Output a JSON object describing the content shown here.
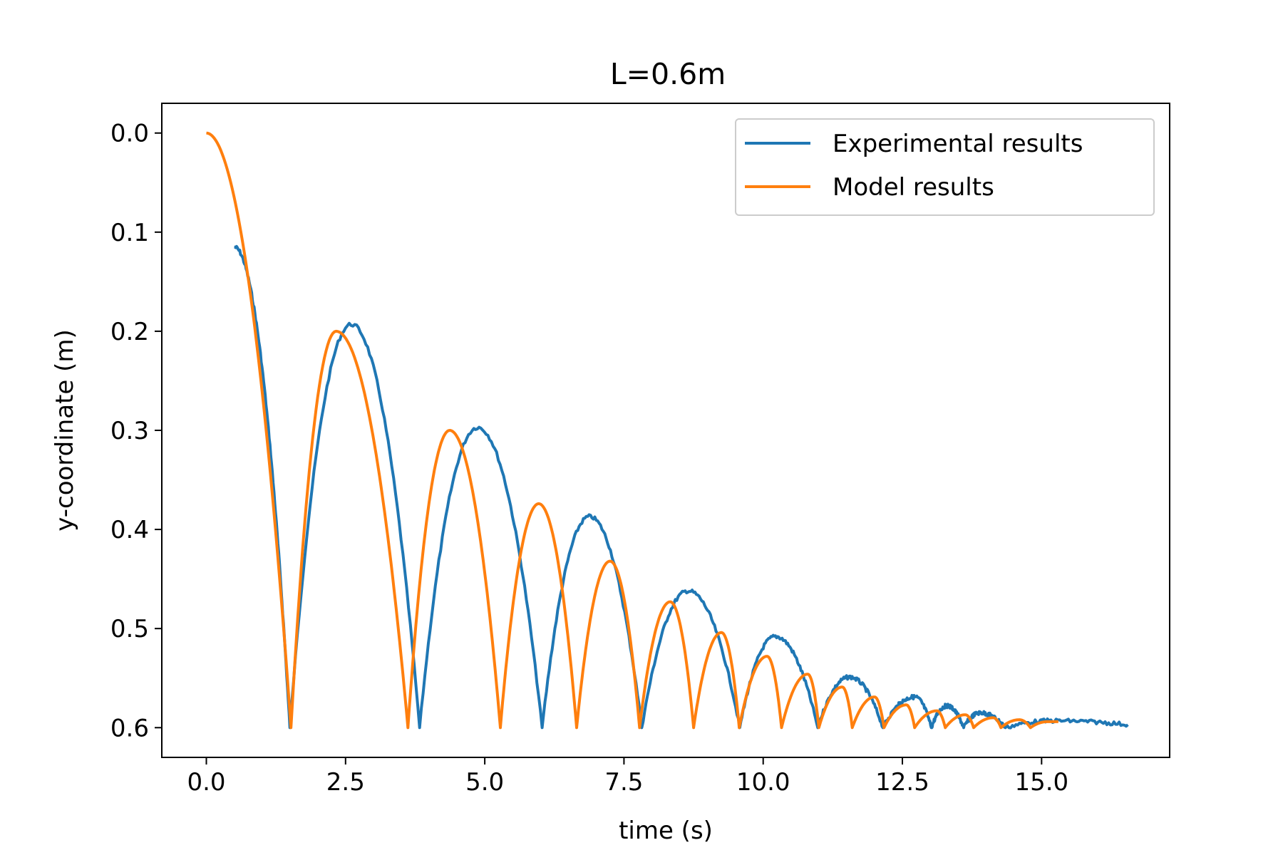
{
  "chart_data": {
    "type": "line",
    "title": "L=0.6m",
    "xlabel": "time (s)",
    "ylabel": "y-coordinate (m)",
    "xlim": [
      -0.8,
      17.3
    ],
    "ylim": [
      0.63,
      -0.03
    ],
    "y_axis_inverted": true,
    "x_ticks": [
      "0.0",
      "2.5",
      "5.0",
      "7.5",
      "10.0",
      "12.5",
      "15.0"
    ],
    "y_ticks": [
      "0.0",
      "0.1",
      "0.2",
      "0.3",
      "0.4",
      "0.5",
      "0.6"
    ],
    "grid": false,
    "legend_position": "top-right",
    "series": [
      {
        "name": "Experimental results",
        "color": "#1f77b4",
        "bounces": [
          {
            "t0": 0.5,
            "t1": 1.5,
            "y0": 0.115,
            "peak": 0.115,
            "peak_t": 0.5
          },
          {
            "t0": 1.5,
            "t1": 3.83,
            "peak": 0.193,
            "peak_t": 2.6
          },
          {
            "t0": 3.83,
            "t1": 6.03,
            "peak": 0.297,
            "peak_t": 4.87
          },
          {
            "t0": 6.03,
            "t1": 7.82,
            "peak": 0.387,
            "peak_t": 6.88
          },
          {
            "t0": 7.82,
            "t1": 9.58,
            "peak": 0.462,
            "peak_t": 8.65
          },
          {
            "t0": 9.58,
            "t1": 10.98,
            "peak": 0.508,
            "peak_t": 10.22
          },
          {
            "t0": 10.98,
            "t1": 12.15,
            "peak": 0.549,
            "peak_t": 11.55
          },
          {
            "t0": 12.15,
            "t1": 13.02,
            "peak": 0.569,
            "peak_t": 12.72
          },
          {
            "t0": 13.02,
            "t1": 13.6,
            "peak": 0.578,
            "peak_t": 13.3
          },
          {
            "t0": 13.6,
            "t1": 14.35,
            "peak": 0.585,
            "peak_t": 13.9
          },
          {
            "t0": 14.35,
            "t1": 16.55,
            "peak": 0.593,
            "peak_t": 15.2,
            "y1": 0.597
          }
        ]
      },
      {
        "name": "Model results",
        "color": "#ff7f0e",
        "bounces": [
          {
            "t0": 0.0,
            "t1": 1.52,
            "y0": 0.0,
            "peak": 0.0,
            "peak_t": 0.0
          },
          {
            "t0": 1.52,
            "t1": 3.62,
            "peak": 0.2,
            "peak_t": 2.33
          },
          {
            "t0": 3.62,
            "t1": 5.28,
            "peak": 0.3,
            "peak_t": 4.37
          },
          {
            "t0": 5.28,
            "t1": 6.65,
            "peak": 0.374,
            "peak_t": 5.97
          },
          {
            "t0": 6.65,
            "t1": 7.78,
            "peak": 0.432,
            "peak_t": 7.25
          },
          {
            "t0": 7.78,
            "t1": 8.75,
            "peak": 0.473,
            "peak_t": 8.33
          },
          {
            "t0": 8.75,
            "t1": 9.57,
            "peak": 0.504,
            "peak_t": 9.25
          },
          {
            "t0": 9.57,
            "t1": 10.33,
            "peak": 0.528,
            "peak_t": 10.07
          },
          {
            "t0": 10.33,
            "t1": 11.0,
            "peak": 0.546,
            "peak_t": 10.8
          },
          {
            "t0": 11.0,
            "t1": 11.6,
            "peak": 0.559,
            "peak_t": 11.42
          },
          {
            "t0": 11.6,
            "t1": 12.17,
            "peak": 0.569,
            "peak_t": 12.0
          },
          {
            "t0": 12.17,
            "t1": 12.72,
            "peak": 0.577,
            "peak_t": 12.57
          },
          {
            "t0": 12.72,
            "t1": 13.27,
            "peak": 0.583,
            "peak_t": 13.12
          },
          {
            "t0": 13.27,
            "t1": 13.78,
            "peak": 0.587,
            "peak_t": 13.63
          },
          {
            "t0": 13.78,
            "t1": 14.27,
            "peak": 0.59,
            "peak_t": 14.13
          },
          {
            "t0": 14.27,
            "t1": 14.8,
            "peak": 0.592,
            "peak_t": 14.6
          },
          {
            "t0": 14.8,
            "t1": 15.3,
            "peak": 0.594,
            "peak_t": 15.1,
            "y1": 0.594
          }
        ]
      }
    ]
  }
}
